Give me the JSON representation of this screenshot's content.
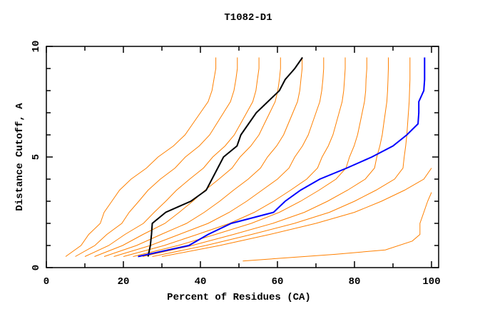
{
  "chart_data": {
    "type": "line",
    "title": "T1082-D1",
    "xlabel": "Percent of Residues (CA)",
    "ylabel": "Distance Cutoff, A",
    "xlim": [
      0,
      100
    ],
    "ylim": [
      0,
      10
    ],
    "x_ticks": [
      "0",
      "20",
      "40",
      "60",
      "80",
      "100"
    ],
    "y_ticks": [
      "0",
      "5",
      "10"
    ],
    "grid": false,
    "legend": "none",
    "colors": {
      "models": "#ff8000",
      "best": "#0000ff",
      "reference": "#000000",
      "axes": "#000000"
    },
    "y_levels": [
      0.5,
      1,
      1.5,
      2,
      2.5,
      3,
      3.5,
      4,
      4.5,
      5,
      5.5,
      6,
      6.5,
      7,
      7.5,
      8,
      8.5,
      9,
      9.5
    ],
    "model_series": [
      {
        "x": [
          5,
          9,
          11,
          14,
          15,
          17,
          19,
          22,
          26,
          29,
          33,
          36,
          38,
          40,
          42,
          43,
          43.5,
          44,
          44
        ]
      },
      {
        "x": [
          7.5,
          12.6,
          15.7,
          19.6,
          21.5,
          24,
          26.4,
          29.6,
          33.4,
          36.1,
          39.7,
          42.4,
          44.2,
          46,
          47.8,
          48.7,
          49.2,
          49.6,
          49.6
        ]
      },
      {
        "x": [
          10,
          16.2,
          20.4,
          25.2,
          28,
          31,
          33.8,
          37.2,
          40.8,
          43.2,
          46.4,
          48.8,
          50.4,
          52,
          53.6,
          54.4,
          54.8,
          55.2,
          55.2
        ]
      },
      {
        "x": [
          12.5,
          19.8,
          25.1,
          30.8,
          34.5,
          38,
          41.2,
          44.8,
          48.2,
          50.3,
          53.1,
          55.2,
          56.6,
          58,
          59.4,
          60.1,
          60.5,
          60.8,
          60.8
        ]
      },
      {
        "x": [
          15,
          23.4,
          29.8,
          36.4,
          41,
          45,
          48.6,
          52.4,
          55.6,
          57.4,
          59.8,
          61.6,
          62.8,
          64,
          65.2,
          65.8,
          66.1,
          66.4,
          66.4
        ]
      },
      {
        "x": [
          17.5,
          27,
          34.5,
          42,
          47.5,
          52,
          56,
          60,
          63,
          64.5,
          66.5,
          68,
          69,
          70,
          71,
          71.5,
          71.8,
          72,
          72
        ]
      },
      {
        "x": [
          20,
          30.6,
          39.2,
          47.6,
          54,
          59,
          63.4,
          67.6,
          70.4,
          71.6,
          73.2,
          74.4,
          75.2,
          76,
          76.8,
          77.2,
          77.4,
          77.6,
          77.6
        ]
      },
      {
        "x": [
          22.5,
          34.2,
          43.9,
          53.2,
          60.5,
          66,
          70.8,
          75.2,
          77.8,
          78.7,
          79.9,
          80.8,
          81.4,
          82,
          82.6,
          82.9,
          83,
          83.2,
          83.2
        ]
      },
      {
        "x": [
          25,
          37.8,
          48.6,
          58.8,
          67,
          73,
          78.2,
          82.8,
          85.2,
          85.8,
          86.6,
          87.2,
          87.6,
          88,
          88.4,
          88.6,
          88.7,
          88.8,
          88.8
        ]
      },
      {
        "x": [
          27.5,
          41.4,
          53.3,
          64.4,
          73.5,
          80,
          85.6,
          90.4,
          92.6,
          92.9,
          93.3,
          93.6,
          93.8,
          94,
          94.2,
          94.3,
          94.4,
          94.4,
          94.4
        ]
      },
      {
        "x": [
          30,
          45,
          58,
          70,
          80,
          87,
          93,
          98,
          100
        ]
      }
    ],
    "outlier_series": [
      {
        "x": [
          51,
          75,
          88,
          95,
          97,
          97,
          98,
          99,
          100
        ],
        "y": [
          0.3,
          0.6,
          0.8,
          1.2,
          1.5,
          2.0,
          2.5,
          3.0,
          3.4
        ]
      }
    ],
    "best_series": {
      "x": [
        23.8,
        37,
        42,
        48,
        59,
        62,
        66,
        71,
        78,
        84.5,
        90,
        93.6,
        96.5,
        96.7,
        96.7,
        98,
        98.2,
        98.2,
        98.2
      ]
    },
    "reference_series": {
      "x": [
        26.4,
        27,
        27.3,
        27.5,
        31,
        37.5,
        41.5,
        43,
        44.5,
        46,
        49.5,
        50.5,
        52.5,
        54.5,
        57.5,
        60.5,
        62,
        64.5,
        66.5
      ]
    }
  }
}
